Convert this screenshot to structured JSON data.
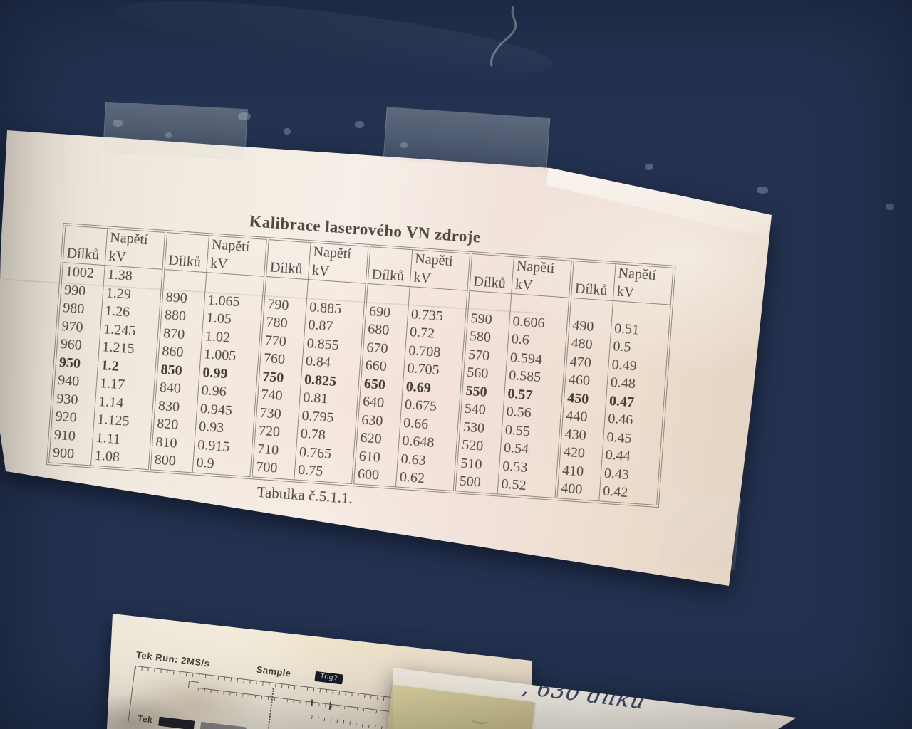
{
  "colors": {
    "wall_navy": "#233250",
    "wall_dark": "#131d33",
    "paper": "#f2ebe1",
    "ink": "#4c4841",
    "table_line": "#8e8a7c",
    "pen_ink": "#3d4a68",
    "tape_yellow": "#d6cd96"
  },
  "calibration_sheet": {
    "title": "Kalibrace laserového VN zdroje",
    "caption": "Tabulka č.5.1.1.",
    "header": {
      "dilku": "Dílků",
      "napeti_line1": "Napětí",
      "napeti_line2": "kV"
    },
    "emphasis_row_index": 5,
    "groups": [
      {
        "rows": [
          [
            "1002",
            "1.38"
          ],
          [
            "990",
            "1.29"
          ],
          [
            "980",
            "1.26"
          ],
          [
            "970",
            "1.245"
          ],
          [
            "960",
            "1.215"
          ],
          [
            "950",
            "1.2"
          ],
          [
            "940",
            "1.17"
          ],
          [
            "930",
            "1.14"
          ],
          [
            "920",
            "1.125"
          ],
          [
            "910",
            "1.11"
          ],
          [
            "900",
            "1.08"
          ]
        ]
      },
      {
        "rows": [
          [
            "",
            ""
          ],
          [
            "890",
            "1.065"
          ],
          [
            "880",
            "1.05"
          ],
          [
            "870",
            "1.02"
          ],
          [
            "860",
            "1.005"
          ],
          [
            "850",
            "0.99"
          ],
          [
            "840",
            "0.96"
          ],
          [
            "830",
            "0.945"
          ],
          [
            "820",
            "0.93"
          ],
          [
            "810",
            "0.915"
          ],
          [
            "800",
            "0.9"
          ]
        ]
      },
      {
        "rows": [
          [
            "",
            ""
          ],
          [
            "790",
            "0.885"
          ],
          [
            "780",
            "0.87"
          ],
          [
            "770",
            "0.855"
          ],
          [
            "760",
            "0.84"
          ],
          [
            "750",
            "0.825"
          ],
          [
            "740",
            "0.81"
          ],
          [
            "730",
            "0.795"
          ],
          [
            "720",
            "0.78"
          ],
          [
            "710",
            "0.765"
          ],
          [
            "700",
            "0.75"
          ]
        ]
      },
      {
        "rows": [
          [
            "",
            ""
          ],
          [
            "690",
            "0.735"
          ],
          [
            "680",
            "0.72"
          ],
          [
            "670",
            "0.708"
          ],
          [
            "660",
            "0.705"
          ],
          [
            "650",
            "0.69"
          ],
          [
            "640",
            "0.675"
          ],
          [
            "630",
            "0.66"
          ],
          [
            "620",
            "0.648"
          ],
          [
            "610",
            "0.63"
          ],
          [
            "600",
            "0.62"
          ]
        ]
      },
      {
        "rows": [
          [
            "",
            ""
          ],
          [
            "590",
            "0.606"
          ],
          [
            "580",
            "0.6"
          ],
          [
            "570",
            "0.594"
          ],
          [
            "560",
            "0.585"
          ],
          [
            "550",
            "0.57"
          ],
          [
            "540",
            "0.56"
          ],
          [
            "530",
            "0.55"
          ],
          [
            "520",
            "0.54"
          ],
          [
            "510",
            "0.53"
          ],
          [
            "500",
            "0.52"
          ]
        ]
      },
      {
        "rows": [
          [
            "",
            ""
          ],
          [
            "490",
            "0.51"
          ],
          [
            "480",
            "0.5"
          ],
          [
            "470",
            "0.49"
          ],
          [
            "460",
            "0.48"
          ],
          [
            "450",
            "0.47"
          ],
          [
            "440",
            "0.46"
          ],
          [
            "430",
            "0.45"
          ],
          [
            "420",
            "0.44"
          ],
          [
            "410",
            "0.43"
          ],
          [
            "400",
            "0.42"
          ]
        ]
      }
    ]
  },
  "oscilloscope_printout": {
    "run_label": "Tek Run: 2MS/s",
    "sample_label": "Sample",
    "trig_label": "Trig?",
    "footer_label": "Tek"
  },
  "handwritten_note": {
    "text": ", 630 dílků"
  }
}
